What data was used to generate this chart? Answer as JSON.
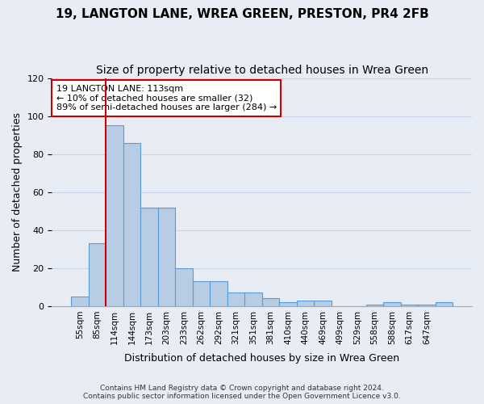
{
  "title": "19, LANGTON LANE, WREA GREEN, PRESTON, PR4 2FB",
  "subtitle": "Size of property relative to detached houses in Wrea Green",
  "xlabel": "Distribution of detached houses by size in Wrea Green",
  "ylabel": "Number of detached properties",
  "bar_values": [
    5,
    33,
    95,
    86,
    52,
    52,
    20,
    13,
    13,
    7,
    7,
    4,
    2,
    3,
    3,
    0,
    0,
    1,
    2,
    1,
    1,
    2
  ],
  "bar_labels": [
    "55sqm",
    "85sqm",
    "114sqm",
    "144sqm",
    "173sqm",
    "203sqm",
    "233sqm",
    "262sqm",
    "292sqm",
    "321sqm",
    "351sqm",
    "381sqm",
    "410sqm",
    "440sqm",
    "469sqm",
    "499sqm",
    "529sqm",
    "558sqm",
    "588sqm",
    "617sqm",
    "647sqm",
    ""
  ],
  "bar_color": "#b8cce4",
  "bar_edge_color": "#5b9bd5",
  "annotation_text": "19 LANGTON LANE: 113sqm\n← 10% of detached houses are smaller (32)\n89% of semi-detached houses are larger (284) →",
  "annotation_box_edge_color": "#cc0000",
  "annotation_box_face_color": "#ffffff",
  "vline_color": "#cc0000",
  "ylim": [
    0,
    120
  ],
  "yticks": [
    0,
    20,
    40,
    60,
    80,
    100,
    120
  ],
  "grid_color": "#c8d4e8",
  "background_color": "#e8edf5",
  "footer_text": "Contains HM Land Registry data © Crown copyright and database right 2024.\nContains public sector information licensed under the Open Government Licence v3.0.",
  "title_fontsize": 11,
  "subtitle_fontsize": 10,
  "xlabel_fontsize": 9,
  "ylabel_fontsize": 9
}
